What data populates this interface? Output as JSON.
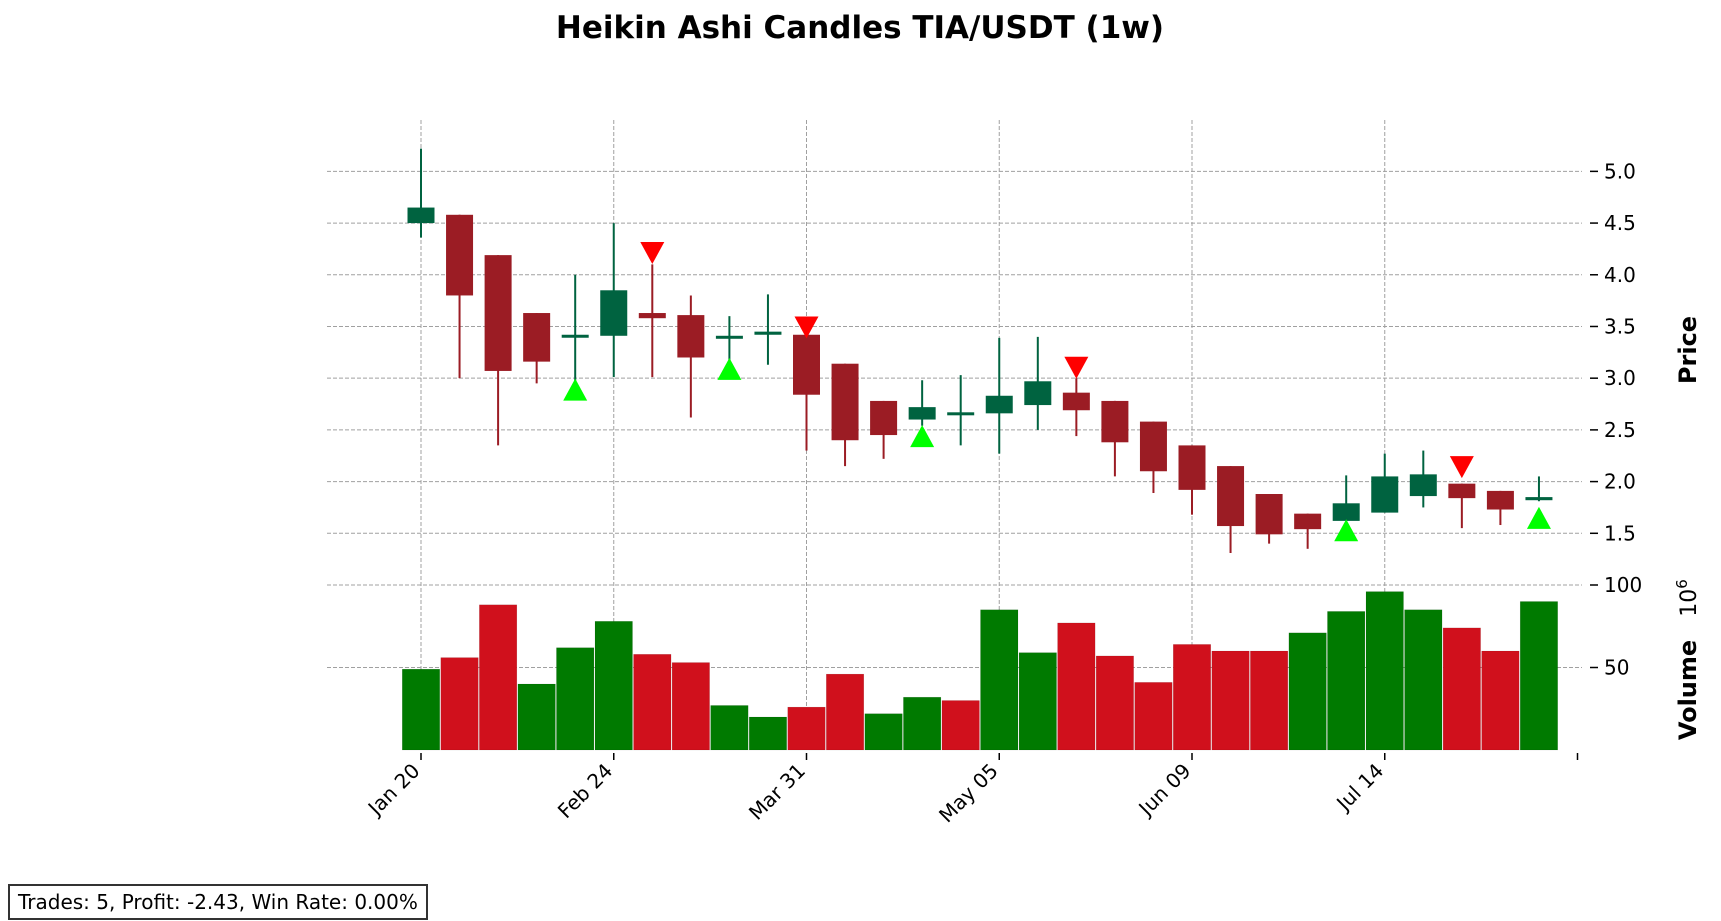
{
  "title": "Heikin Ashi Candles TIA/USDT (1w)",
  "stats_text": "Trades: 5, Profit: -2.43, Win Rate: 0.00%",
  "colors": {
    "up_candle": "#006340",
    "down_candle": "#9b1c24",
    "up_volume": "#007a00",
    "down_volume": "#d0101c",
    "buy_marker": "#00ff00",
    "sell_marker": "#ff0000"
  },
  "chart_data": {
    "type": "candlestick",
    "grid": true,
    "x_tick_labels": [
      {
        "index": 0,
        "label": "Jan 20"
      },
      {
        "index": 5,
        "label": "Feb 24"
      },
      {
        "index": 10,
        "label": "Mar 31"
      },
      {
        "index": 15,
        "label": "May 05"
      },
      {
        "index": 20,
        "label": "Jun 09"
      },
      {
        "index": 25,
        "label": "Jul 14"
      }
    ],
    "price_panel": {
      "ylabel": "Price",
      "ylim": [
        1.0,
        5.4
      ],
      "yticks": [
        1.5,
        2.0,
        2.5,
        3.0,
        3.5,
        4.0,
        4.5,
        5.0
      ],
      "ytick_labels": [
        "1.5",
        "2.0",
        "2.5",
        "3.0",
        "3.5",
        "4.0",
        "4.5",
        "5.0"
      ]
    },
    "volume_panel": {
      "ylabel": "Volume",
      "scale_label": "10",
      "scale_exponent": "6",
      "ylim": [
        0,
        100
      ],
      "yticks": [
        50,
        100
      ],
      "ytick_labels": [
        "50",
        "100"
      ]
    },
    "candles": [
      {
        "open": 4.5,
        "high": 5.22,
        "low": 4.36,
        "close": 4.65
      },
      {
        "open": 4.58,
        "high": 4.58,
        "low": 3.0,
        "close": 3.8
      },
      {
        "open": 4.19,
        "high": 4.19,
        "low": 2.35,
        "close": 3.07
      },
      {
        "open": 3.63,
        "high": 3.63,
        "low": 2.95,
        "close": 3.16
      },
      {
        "open": 3.4,
        "high": 4.0,
        "low": 2.95,
        "close": 3.42
      },
      {
        "open": 3.41,
        "high": 4.5,
        "low": 3.01,
        "close": 3.85
      },
      {
        "open": 3.63,
        "high": 4.1,
        "low": 3.01,
        "close": 3.58
      },
      {
        "open": 3.61,
        "high": 3.8,
        "low": 2.62,
        "close": 3.2
      },
      {
        "open": 3.4,
        "high": 3.6,
        "low": 3.1,
        "close": 3.41
      },
      {
        "open": 3.42,
        "high": 3.81,
        "low": 3.13,
        "close": 3.45
      },
      {
        "open": 3.42,
        "high": 3.42,
        "low": 2.3,
        "close": 2.84
      },
      {
        "open": 3.14,
        "high": 3.14,
        "low": 2.15,
        "close": 2.4
      },
      {
        "open": 2.78,
        "high": 2.78,
        "low": 2.22,
        "close": 2.45
      },
      {
        "open": 2.6,
        "high": 2.98,
        "low": 2.54,
        "close": 2.72
      },
      {
        "open": 2.66,
        "high": 3.03,
        "low": 2.35,
        "close": 2.67
      },
      {
        "open": 2.66,
        "high": 3.39,
        "low": 2.27,
        "close": 2.83
      },
      {
        "open": 2.74,
        "high": 3.4,
        "low": 2.5,
        "close": 2.97
      },
      {
        "open": 2.86,
        "high": 3.0,
        "low": 2.44,
        "close": 2.69
      },
      {
        "open": 2.78,
        "high": 2.78,
        "low": 2.05,
        "close": 2.38
      },
      {
        "open": 2.58,
        "high": 2.58,
        "low": 1.89,
        "close": 2.1
      },
      {
        "open": 2.35,
        "high": 2.35,
        "low": 1.68,
        "close": 1.92
      },
      {
        "open": 2.15,
        "high": 2.15,
        "low": 1.31,
        "close": 1.57
      },
      {
        "open": 1.88,
        "high": 1.88,
        "low": 1.4,
        "close": 1.49
      },
      {
        "open": 1.69,
        "high": 1.69,
        "low": 1.35,
        "close": 1.54
      },
      {
        "open": 1.62,
        "high": 2.06,
        "low": 1.62,
        "close": 1.79
      },
      {
        "open": 1.7,
        "high": 2.27,
        "low": 1.7,
        "close": 2.05
      },
      {
        "open": 1.86,
        "high": 2.3,
        "low": 1.75,
        "close": 2.07
      },
      {
        "open": 1.98,
        "high": 1.98,
        "low": 1.55,
        "close": 1.84
      },
      {
        "open": 1.91,
        "high": 1.91,
        "low": 1.58,
        "close": 1.73
      },
      {
        "open": 1.82,
        "high": 2.05,
        "low": 1.81,
        "close": 1.85
      }
    ],
    "volumes": [
      {
        "value": 49,
        "direction": "up"
      },
      {
        "value": 56,
        "direction": "down"
      },
      {
        "value": 88,
        "direction": "down"
      },
      {
        "value": 40,
        "direction": "up"
      },
      {
        "value": 62,
        "direction": "up"
      },
      {
        "value": 78,
        "direction": "up"
      },
      {
        "value": 58,
        "direction": "down"
      },
      {
        "value": 53,
        "direction": "down"
      },
      {
        "value": 27,
        "direction": "up"
      },
      {
        "value": 20,
        "direction": "up"
      },
      {
        "value": 26,
        "direction": "down"
      },
      {
        "value": 46,
        "direction": "down"
      },
      {
        "value": 22,
        "direction": "up"
      },
      {
        "value": 32,
        "direction": "up"
      },
      {
        "value": 30,
        "direction": "down"
      },
      {
        "value": 85,
        "direction": "up"
      },
      {
        "value": 59,
        "direction": "up"
      },
      {
        "value": 77,
        "direction": "down"
      },
      {
        "value": 57,
        "direction": "down"
      },
      {
        "value": 41,
        "direction": "down"
      },
      {
        "value": 64,
        "direction": "down"
      },
      {
        "value": 60,
        "direction": "down"
      },
      {
        "value": 60,
        "direction": "down"
      },
      {
        "value": 71,
        "direction": "up"
      },
      {
        "value": 84,
        "direction": "up"
      },
      {
        "value": 96,
        "direction": "up"
      },
      {
        "value": 85,
        "direction": "up"
      },
      {
        "value": 74,
        "direction": "down"
      },
      {
        "value": 60,
        "direction": "down"
      },
      {
        "value": 90,
        "direction": "up"
      }
    ],
    "buy_signals": [
      {
        "index": 4,
        "price": 2.88
      },
      {
        "index": 8,
        "price": 3.08
      },
      {
        "index": 13,
        "price": 2.43
      },
      {
        "index": 24,
        "price": 1.52
      },
      {
        "index": 29,
        "price": 1.64
      }
    ],
    "sell_signals": [
      {
        "index": 6,
        "price": 4.22
      },
      {
        "index": 10,
        "price": 3.5
      },
      {
        "index": 17,
        "price": 3.11
      },
      {
        "index": 27,
        "price": 2.15
      }
    ]
  }
}
